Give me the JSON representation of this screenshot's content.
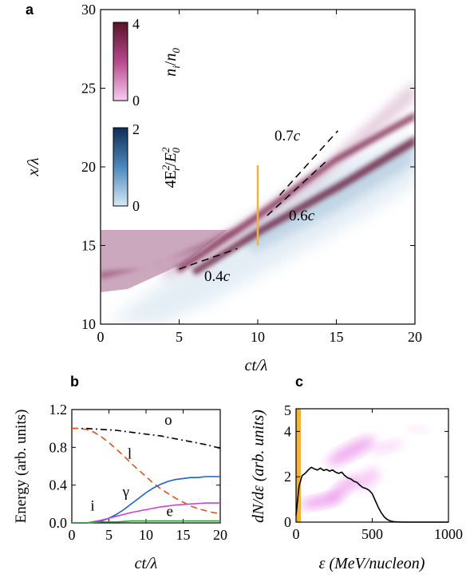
{
  "chart_data": [
    {
      "panel": "a",
      "type": "heatmap",
      "xlabel": "ct/λ",
      "ylabel": "x/λ",
      "xlim": [
        0,
        20
      ],
      "ylim": [
        10,
        30
      ],
      "x_ticks": [
        "0",
        "5",
        "10",
        "15",
        "20"
      ],
      "y_ticks": [
        "10",
        "15",
        "20",
        "25",
        "30"
      ],
      "colorbars": [
        {
          "name": "n_i/n_0",
          "label": "n",
          "label_sub": "i",
          "label_den": "n",
          "label_den_sub": "0",
          "ticks": [
            "0",
            "4"
          ],
          "color_low": "#f7ccf0",
          "color_high": "#5a1329"
        },
        {
          "name": "4E_r^2/E_0^2",
          "label_num": "4E",
          "label_num_sup": "2",
          "label_num_sub": "r",
          "label_den": "E",
          "label_den_sup": "2",
          "label_den_sub": "0",
          "ticks": [
            "0",
            "2"
          ],
          "color_low": "#d6e9f5",
          "color_high": "#0e2e57"
        }
      ],
      "annotations": [
        {
          "text": "0.7c",
          "num": "0.7",
          "unit": "c",
          "line": [
            [
              11.4,
              18.2
            ],
            [
              15.1,
              22.3
            ]
          ]
        },
        {
          "text": "0.6c",
          "num": "0.6",
          "unit": "c",
          "line": [
            [
              10.6,
              16.9
            ],
            [
              14.3,
              20.3
            ]
          ]
        },
        {
          "text": "0.4c",
          "num": "0.4",
          "unit": "c",
          "line": [
            [
              5.0,
              13.5
            ],
            [
              8.7,
              14.8
            ]
          ]
        }
      ],
      "marker": {
        "x": 10,
        "y_range": [
          15.0,
          20.1
        ],
        "color": "#f2b33a"
      }
    },
    {
      "panel": "b",
      "type": "line",
      "xlabel": "ct/λ",
      "ylabel": "Energy (arb. units)",
      "xlim": [
        0,
        20
      ],
      "ylim": [
        0,
        1.2
      ],
      "x_ticks": [
        "0",
        "5",
        "10",
        "15",
        "20"
      ],
      "y_ticks": [
        "0.0",
        "0.4",
        "0.8",
        "1.2"
      ],
      "series": [
        {
          "name": "o",
          "color": "#000000",
          "style": "dashdot",
          "x": [
            0,
            2,
            4,
            6,
            8,
            10,
            12,
            14,
            16,
            18,
            20
          ],
          "values": [
            1.0,
            1.0,
            0.99,
            0.98,
            0.96,
            0.94,
            0.92,
            0.89,
            0.86,
            0.83,
            0.79
          ]
        },
        {
          "name": "l",
          "color": "#d9541e",
          "style": "dashed",
          "x": [
            0,
            1,
            2,
            3,
            4,
            5,
            6,
            7,
            8,
            9,
            10,
            11,
            12,
            13,
            14,
            15,
            16,
            17,
            18,
            19,
            20
          ],
          "values": [
            1.0,
            1.0,
            0.99,
            0.96,
            0.91,
            0.85,
            0.78,
            0.71,
            0.63,
            0.56,
            0.49,
            0.42,
            0.36,
            0.31,
            0.26,
            0.22,
            0.18,
            0.15,
            0.13,
            0.11,
            0.1
          ]
        },
        {
          "name": "γ",
          "color": "#1f5fcf",
          "style": "solid",
          "x": [
            0,
            2,
            3,
            4,
            5,
            6,
            7,
            8,
            9,
            10,
            11,
            12,
            13,
            14,
            15,
            16,
            17,
            18,
            19,
            20
          ],
          "values": [
            0,
            0,
            0.01,
            0.02,
            0.05,
            0.09,
            0.14,
            0.2,
            0.26,
            0.32,
            0.37,
            0.41,
            0.44,
            0.46,
            0.47,
            0.48,
            0.48,
            0.49,
            0.49,
            0.49
          ]
        },
        {
          "name": "i",
          "color": "#d13cd8",
          "style": "solid",
          "x": [
            0,
            2,
            4,
            6,
            8,
            10,
            12,
            14,
            16,
            18,
            20
          ],
          "values": [
            0,
            0,
            0.03,
            0.07,
            0.11,
            0.14,
            0.17,
            0.19,
            0.2,
            0.21,
            0.21
          ]
        },
        {
          "name": "e",
          "color": "#27a12f",
          "style": "solid",
          "x": [
            0,
            2,
            4,
            6,
            8,
            10,
            12,
            14,
            16,
            18,
            20
          ],
          "values": [
            0,
            0,
            0.01,
            0.01,
            0.02,
            0.02,
            0.02,
            0.02,
            0.02,
            0.02,
            0.02
          ]
        }
      ],
      "curve_labels": [
        {
          "text": "o",
          "x": 13,
          "y": 1.04
        },
        {
          "text": "l",
          "x": 7.8,
          "y": 0.68
        },
        {
          "text": "γ",
          "x": 7.3,
          "y": 0.28
        },
        {
          "text": "i",
          "x": 2.8,
          "y": 0.13
        },
        {
          "text": "e",
          "x": 13.2,
          "y": 0.07
        }
      ]
    },
    {
      "panel": "c",
      "type": "line",
      "xlabel": "ε (MeV/nucleon)",
      "ylabel": "dN/dε (arb. units)",
      "xlim": [
        0,
        1000
      ],
      "ylim": [
        0,
        5
      ],
      "x_ticks": [
        "0",
        "500",
        "1000"
      ],
      "y_ticks": [
        "0",
        "2",
        "4"
      ],
      "y_tick_values": [
        0,
        2,
        4
      ],
      "series": [
        {
          "name": "spectrum",
          "color": "#000000",
          "style": "solid",
          "x": [
            0,
            20,
            40,
            60,
            80,
            100,
            120,
            140,
            160,
            180,
            200,
            220,
            240,
            260,
            280,
            300,
            320,
            340,
            360,
            380,
            400,
            420,
            440,
            460,
            480,
            500,
            520,
            540,
            560,
            580,
            600,
            620,
            640,
            660,
            700,
            800,
            1000
          ],
          "values": [
            0.3,
            1.6,
            2.05,
            2.15,
            2.3,
            2.42,
            2.35,
            2.3,
            2.38,
            2.28,
            2.32,
            2.25,
            2.3,
            2.2,
            2.15,
            2.2,
            2.05,
            1.95,
            1.9,
            1.8,
            1.75,
            1.62,
            1.52,
            1.48,
            1.4,
            1.25,
            0.95,
            0.65,
            0.4,
            0.22,
            0.11,
            0.05,
            0.02,
            0.01,
            0,
            0,
            0
          ]
        },
        {
          "name": "ion_phase_space",
          "color": "#e060e0",
          "style": "blob"
        },
        {
          "name": "marker",
          "color": "#f2b33a",
          "style": "bar"
        }
      ]
    }
  ],
  "panel_labels": {
    "a": "a",
    "b": "b",
    "c": "c"
  }
}
